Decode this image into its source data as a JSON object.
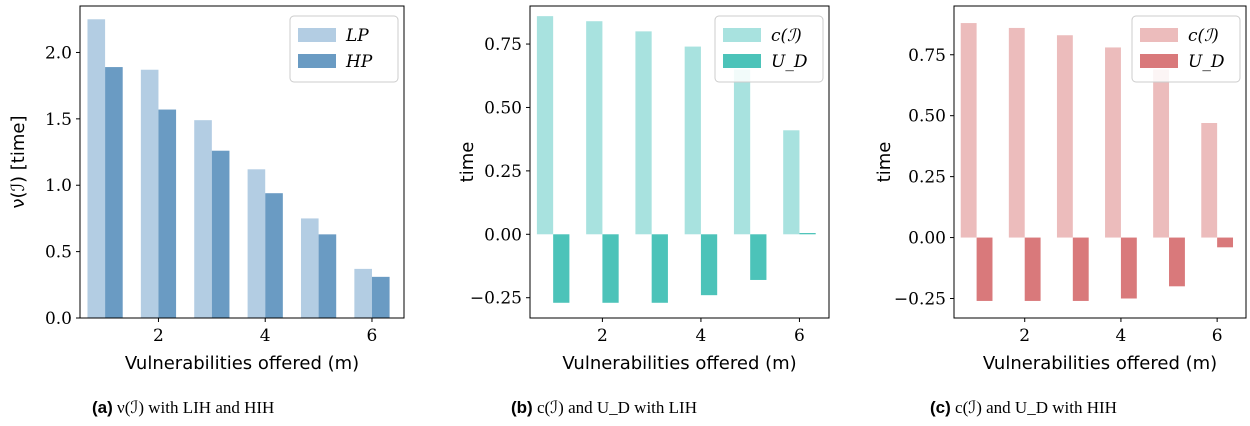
{
  "chart_data": [
    {
      "type": "bar",
      "caption_tag": "(a)",
      "caption_text": "ν(ℐ) with LIH and HIH",
      "categories": [
        1,
        2,
        3,
        4,
        5,
        6
      ],
      "xticks": [
        "2",
        "4",
        "6"
      ],
      "xlabel": "Vulnerabilities offered (m)",
      "ylabel": "ν(ℐ) [time]",
      "ylim": [
        0,
        2.35
      ],
      "yticks": [
        "0.0",
        "0.5",
        "1.0",
        "1.5",
        "2.0"
      ],
      "legend": "top-right",
      "grid": false,
      "series": [
        {
          "name": "LP",
          "color": "#b3cde3",
          "values": [
            2.25,
            1.87,
            1.49,
            1.12,
            0.75,
            0.37
          ]
        },
        {
          "name": "HP",
          "color": "#6a9bc3",
          "values": [
            1.89,
            1.57,
            1.26,
            0.94,
            0.63,
            0.31
          ]
        }
      ]
    },
    {
      "type": "bar",
      "caption_tag": "(b)",
      "caption_text": "c(ℐ) and U_D with LIH",
      "categories": [
        1,
        2,
        3,
        4,
        5,
        6
      ],
      "xticks": [
        "2",
        "4",
        "6"
      ],
      "xlabel": "Vulnerabilities offered (m)",
      "ylabel": "time",
      "ylim": [
        -0.33,
        0.9
      ],
      "yticks": [
        "−0.25",
        "0.00",
        "0.25",
        "0.50",
        "0.75"
      ],
      "legend": "top-right",
      "grid": false,
      "series": [
        {
          "name": "c(ℐ)",
          "color": "#a8e2df",
          "values": [
            0.86,
            0.84,
            0.8,
            0.74,
            0.65,
            0.41
          ]
        },
        {
          "name": "U_D",
          "color": "#4cc3b9",
          "values": [
            -0.27,
            -0.27,
            -0.27,
            -0.24,
            -0.18,
            0.005
          ]
        }
      ]
    },
    {
      "type": "bar",
      "caption_tag": "(c)",
      "caption_text": "c(ℐ) and U_D with HIH",
      "categories": [
        1,
        2,
        3,
        4,
        5,
        6
      ],
      "xticks": [
        "2",
        "4",
        "6"
      ],
      "xlabel": "Vulnerabilities offered (m)",
      "ylabel": "time",
      "ylim": [
        -0.33,
        0.95
      ],
      "yticks": [
        "−0.25",
        "0.00",
        "0.25",
        "0.50",
        "0.75"
      ],
      "legend": "top-right",
      "grid": false,
      "series": [
        {
          "name": "c(ℐ)",
          "color": "#ecbcbc",
          "values": [
            0.88,
            0.86,
            0.83,
            0.78,
            0.69,
            0.47
          ]
        },
        {
          "name": "U_D",
          "color": "#d9797b",
          "values": [
            -0.26,
            -0.26,
            -0.26,
            -0.25,
            -0.2,
            -0.04
          ]
        }
      ]
    }
  ]
}
